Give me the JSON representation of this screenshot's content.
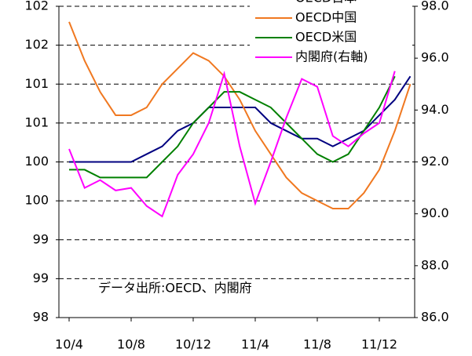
{
  "chart_data": {
    "type": "line",
    "categories": [
      "10/4",
      null,
      null,
      null,
      "10/8",
      null,
      null,
      null,
      "10/12",
      null,
      null,
      null,
      "11/4",
      null,
      null,
      null,
      "11/8",
      null,
      null,
      null,
      "11/12",
      null,
      null
    ],
    "series": [
      {
        "name": "OECD日本",
        "color": "#000080",
        "values": [
          100.0,
          100.0,
          100.0,
          100.0,
          100.0,
          100.1,
          100.2,
          100.4,
          100.5,
          100.7,
          100.7,
          100.7,
          100.7,
          100.5,
          100.4,
          100.3,
          100.3,
          100.2,
          100.3,
          100.4,
          100.6,
          100.8,
          101.1
        ]
      },
      {
        "name": "OECD中国",
        "color": "#f07820",
        "values": [
          101.8,
          101.3,
          100.9,
          100.6,
          100.6,
          100.7,
          101.0,
          101.2,
          101.4,
          101.3,
          101.1,
          100.8,
          100.4,
          100.1,
          99.8,
          99.6,
          99.5,
          99.4,
          99.4,
          99.6,
          99.9,
          100.4,
          101.0
        ]
      },
      {
        "name": "OECD米国",
        "color": "#008000",
        "values": [
          99.9,
          99.9,
          99.8,
          99.8,
          99.8,
          99.8,
          100.0,
          100.2,
          100.5,
          100.7,
          100.9,
          100.9,
          100.8,
          100.7,
          100.5,
          100.3,
          100.1,
          100.0,
          100.1,
          100.4,
          100.7,
          101.1,
          null
        ]
      },
      {
        "name": "内閣府(右軸)",
        "color": "#ff00ff",
        "axis": "y2",
        "values": [
          92.5,
          91.0,
          91.3,
          90.9,
          91.0,
          90.3,
          89.9,
          91.5,
          92.3,
          93.5,
          95.4,
          92.6,
          90.4,
          92.0,
          93.7,
          95.2,
          94.9,
          93.0,
          92.6,
          93.1,
          93.5,
          95.5,
          null
        ]
      }
    ],
    "ylim": [
      98,
      102
    ],
    "yticks": [
      {
        "value": 98,
        "label": "98"
      },
      {
        "value": 98.5,
        "label": "99"
      },
      {
        "value": 99,
        "label": "99"
      },
      {
        "value": 99.5,
        "label": "100"
      },
      {
        "value": 100,
        "label": "100"
      },
      {
        "value": 100.5,
        "label": "101"
      },
      {
        "value": 101,
        "label": "101"
      },
      {
        "value": 101.5,
        "label": "102"
      },
      {
        "value": 102,
        "label": "102"
      }
    ],
    "y2lim": [
      86,
      98
    ],
    "y2ticks": [
      {
        "value": 86,
        "label": "86.0"
      },
      {
        "value": 88,
        "label": "88.0"
      },
      {
        "value": 90,
        "label": "90.0"
      },
      {
        "value": 92,
        "label": "92.0"
      },
      {
        "value": 94,
        "label": "94.0"
      },
      {
        "value": 96,
        "label": "96.0"
      },
      {
        "value": 98,
        "label": "98.0"
      }
    ],
    "grid": true,
    "annotation": "データ出所:OECD、内閣府",
    "legend": "upper right"
  }
}
